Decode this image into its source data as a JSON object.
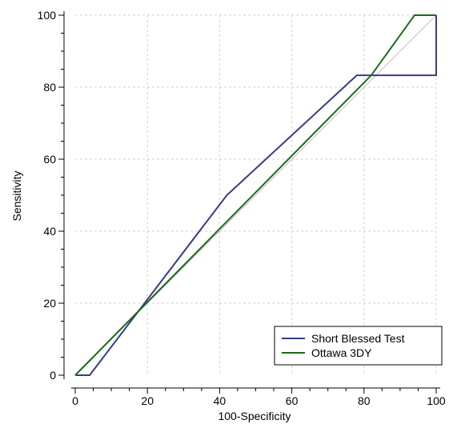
{
  "chart_data": {
    "type": "line",
    "xlabel": "100-Specificity",
    "ylabel": "Sensitivity",
    "xlim": [
      0,
      100
    ],
    "ylim": [
      0,
      100
    ],
    "x_ticks": [
      "0",
      "20",
      "40",
      "60",
      "80",
      "100"
    ],
    "y_ticks": [
      "0",
      "20",
      "40",
      "60",
      "80",
      "100"
    ],
    "grid": true,
    "legend_position": "bottom-right",
    "reference_line": {
      "x": [
        0,
        100
      ],
      "y": [
        0,
        100
      ],
      "color": "#c0c0c0"
    },
    "series": [
      {
        "name": "Short Blessed Test",
        "color": "#3a3a85",
        "x": [
          0,
          4,
          42,
          78,
          100,
          100
        ],
        "y": [
          0,
          0,
          50,
          83.3,
          83.3,
          100
        ]
      },
      {
        "name": "Ottawa 3DY",
        "color": "#1a6b1a",
        "x": [
          0,
          82,
          94,
          100
        ],
        "y": [
          0,
          83.3,
          100,
          100
        ]
      }
    ]
  }
}
